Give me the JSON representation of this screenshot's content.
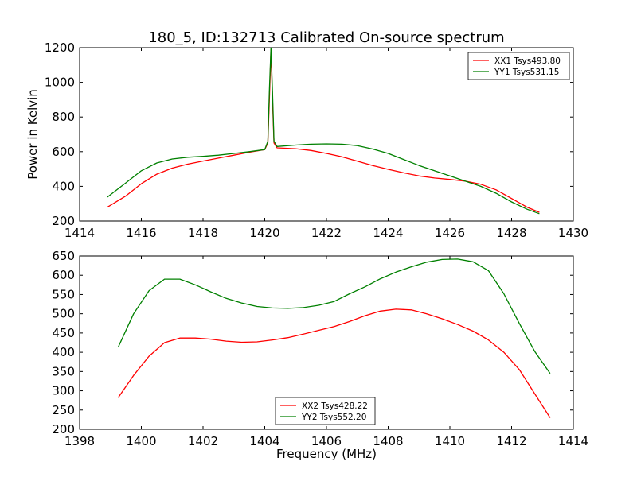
{
  "chart_data": [
    {
      "type": "line",
      "title": "180_5, ID:132713 Calibrated On-source spectrum",
      "xlabel": "",
      "ylabel": "Power in Kelvin",
      "xlim": [
        1414,
        1430
      ],
      "ylim": [
        200,
        1200
      ],
      "xticks": [
        1414,
        1416,
        1418,
        1420,
        1422,
        1424,
        1426,
        1428,
        1430
      ],
      "yticks": [
        200,
        400,
        600,
        800,
        1000,
        1200
      ],
      "grid": false,
      "legend_position": "upper right",
      "series": [
        {
          "name": "XX1 Tsys493.80",
          "color": "#ff0000",
          "x": [
            1414.9,
            1415.5,
            1416.0,
            1416.5,
            1417.0,
            1417.5,
            1418.0,
            1418.5,
            1419.0,
            1419.5,
            1420.0,
            1420.1,
            1420.15,
            1420.2,
            1420.25,
            1420.3,
            1420.4,
            1421.0,
            1421.5,
            1422.0,
            1422.5,
            1423.0,
            1423.5,
            1424.0,
            1424.5,
            1425.0,
            1425.5,
            1426.0,
            1426.5,
            1427.0,
            1427.5,
            1428.0,
            1428.5,
            1428.9
          ],
          "y": [
            280,
            345,
            415,
            470,
            505,
            528,
            546,
            563,
            580,
            597,
            612,
            650,
            900,
            1190,
            900,
            650,
            622,
            617,
            607,
            590,
            570,
            545,
            520,
            498,
            478,
            460,
            448,
            440,
            430,
            412,
            380,
            330,
            280,
            250
          ]
        },
        {
          "name": "YY1 Tsys531.15",
          "color": "#008000",
          "x": [
            1414.9,
            1415.5,
            1416.0,
            1416.5,
            1417.0,
            1417.5,
            1418.0,
            1418.5,
            1419.0,
            1419.5,
            1420.0,
            1420.1,
            1420.15,
            1420.2,
            1420.25,
            1420.3,
            1420.4,
            1421.0,
            1421.5,
            1422.0,
            1422.5,
            1423.0,
            1423.5,
            1424.0,
            1424.5,
            1425.0,
            1425.5,
            1426.0,
            1426.5,
            1427.0,
            1427.5,
            1428.0,
            1428.5,
            1428.9
          ],
          "y": [
            338,
            420,
            490,
            535,
            558,
            568,
            573,
            580,
            590,
            600,
            612,
            660,
            950,
            1200,
            950,
            660,
            630,
            638,
            643,
            645,
            643,
            635,
            615,
            590,
            555,
            520,
            490,
            460,
            430,
            400,
            360,
            310,
            268,
            242
          ]
        }
      ]
    },
    {
      "type": "line",
      "title": "",
      "xlabel": "Frequency (MHz)",
      "ylabel": "",
      "xlim": [
        1398,
        1414
      ],
      "ylim": [
        200,
        650
      ],
      "xticks": [
        1398,
        1400,
        1402,
        1404,
        1406,
        1408,
        1410,
        1412,
        1414
      ],
      "yticks": [
        200,
        250,
        300,
        350,
        400,
        450,
        500,
        550,
        600,
        650
      ],
      "grid": false,
      "legend_position": "lower center",
      "series": [
        {
          "name": "XX2 Tsys428.22",
          "color": "#ff0000",
          "x": [
            1399.25,
            1399.75,
            1400.25,
            1400.75,
            1401.25,
            1401.75,
            1402.25,
            1402.75,
            1403.25,
            1403.75,
            1404.25,
            1404.75,
            1405.25,
            1405.75,
            1406.25,
            1406.75,
            1407.25,
            1407.75,
            1408.25,
            1408.75,
            1409.25,
            1409.75,
            1410.25,
            1410.75,
            1411.25,
            1411.75,
            1412.25,
            1412.75,
            1413.25
          ],
          "y": [
            282,
            340,
            390,
            425,
            437,
            437,
            434,
            429,
            426,
            427,
            432,
            438,
            447,
            457,
            467,
            480,
            495,
            507,
            512,
            510,
            500,
            487,
            472,
            455,
            432,
            400,
            355,
            292,
            230
          ]
        },
        {
          "name": "YY2 Tsys552.20",
          "color": "#008000",
          "x": [
            1399.25,
            1399.75,
            1400.25,
            1400.75,
            1401.25,
            1401.75,
            1402.25,
            1402.75,
            1403.25,
            1403.75,
            1404.25,
            1404.75,
            1405.25,
            1405.75,
            1406.25,
            1406.75,
            1407.25,
            1407.75,
            1408.25,
            1408.75,
            1409.25,
            1409.75,
            1410.25,
            1410.75,
            1411.25,
            1411.75,
            1412.25,
            1412.75,
            1413.25
          ],
          "y": [
            413,
            500,
            560,
            590,
            590,
            575,
            557,
            540,
            528,
            519,
            515,
            514,
            516,
            522,
            532,
            552,
            570,
            591,
            608,
            622,
            634,
            641,
            642,
            635,
            612,
            552,
            475,
            402,
            345
          ]
        }
      ]
    }
  ]
}
